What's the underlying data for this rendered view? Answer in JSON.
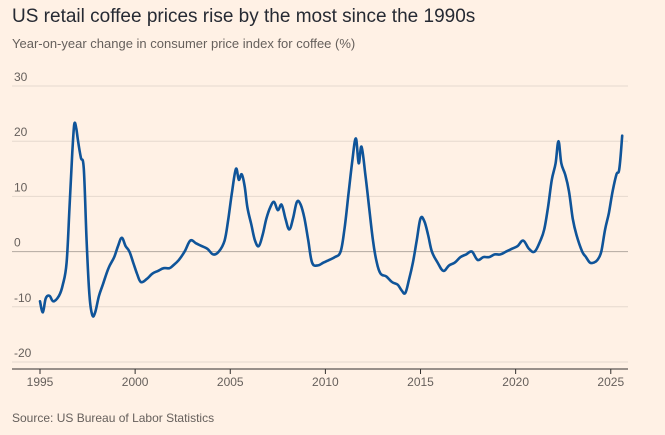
{
  "title": "US retail coffee prices rise by the most since the 1990s",
  "subtitle": "Year-on-year change in consumer price index for coffee (%)",
  "source": "Source: US Bureau of Labor Statistics",
  "colors": {
    "background": "#fff1e5",
    "line": "#0f5499",
    "grid": "#e6d9ce",
    "zero_line": "#b3a9a0"
  },
  "chart_data": {
    "type": "line",
    "title": "US retail coffee prices rise by the most since the 1990s",
    "subtitle": "Year-on-year change in consumer price index for coffee (%)",
    "xlabel": "",
    "ylabel": "",
    "xlim": [
      1995,
      2025.8
    ],
    "ylim": [
      -20,
      30
    ],
    "x_ticks": [
      1995,
      2000,
      2005,
      2010,
      2015,
      2020,
      2025
    ],
    "y_ticks": [
      -20,
      -10,
      0,
      10,
      20,
      30
    ],
    "grid": "horizontal",
    "legend": "none",
    "series": [
      {
        "values": [
          [
            1995.0,
            -9
          ],
          [
            1995.15,
            -11
          ],
          [
            1995.3,
            -8.5
          ],
          [
            1995.5,
            -8
          ],
          [
            1995.7,
            -9
          ],
          [
            1996.0,
            -8
          ],
          [
            1996.2,
            -6
          ],
          [
            1996.4,
            -2
          ],
          [
            1996.55,
            8
          ],
          [
            1996.7,
            18
          ],
          [
            1996.8,
            23
          ],
          [
            1996.9,
            22.5
          ],
          [
            1997.0,
            20
          ],
          [
            1997.15,
            17
          ],
          [
            1997.3,
            15
          ],
          [
            1997.45,
            2
          ],
          [
            1997.6,
            -8
          ],
          [
            1997.75,
            -11.5
          ],
          [
            1997.9,
            -11
          ],
          [
            1998.1,
            -8
          ],
          [
            1998.3,
            -6
          ],
          [
            1998.6,
            -3
          ],
          [
            1998.9,
            -1
          ],
          [
            1999.1,
            1
          ],
          [
            1999.3,
            2.5
          ],
          [
            1999.5,
            1
          ],
          [
            1999.7,
            0
          ],
          [
            1999.9,
            -2
          ],
          [
            2000.1,
            -4
          ],
          [
            2000.3,
            -5.5
          ],
          [
            2000.6,
            -5
          ],
          [
            2000.9,
            -4
          ],
          [
            2001.2,
            -3.5
          ],
          [
            2001.5,
            -3
          ],
          [
            2001.8,
            -3
          ],
          [
            2002.0,
            -2.5
          ],
          [
            2002.3,
            -1.5
          ],
          [
            2002.6,
            0
          ],
          [
            2002.9,
            2
          ],
          [
            2003.2,
            1.5
          ],
          [
            2003.5,
            1
          ],
          [
            2003.8,
            0.5
          ],
          [
            2004.1,
            -0.5
          ],
          [
            2004.4,
            0
          ],
          [
            2004.7,
            2
          ],
          [
            2004.9,
            6
          ],
          [
            2005.1,
            11
          ],
          [
            2005.3,
            15
          ],
          [
            2005.45,
            13
          ],
          [
            2005.6,
            14
          ],
          [
            2005.75,
            12
          ],
          [
            2005.9,
            8
          ],
          [
            2006.1,
            5
          ],
          [
            2006.3,
            2
          ],
          [
            2006.5,
            1
          ],
          [
            2006.7,
            3
          ],
          [
            2006.9,
            6
          ],
          [
            2007.1,
            8
          ],
          [
            2007.3,
            9
          ],
          [
            2007.5,
            7.5
          ],
          [
            2007.7,
            8.5
          ],
          [
            2007.9,
            6
          ],
          [
            2008.1,
            4
          ],
          [
            2008.3,
            6
          ],
          [
            2008.5,
            9
          ],
          [
            2008.7,
            8.5
          ],
          [
            2008.9,
            6
          ],
          [
            2009.1,
            2
          ],
          [
            2009.3,
            -2
          ],
          [
            2009.6,
            -2.5
          ],
          [
            2009.9,
            -2
          ],
          [
            2010.2,
            -1.5
          ],
          [
            2010.5,
            -1
          ],
          [
            2010.8,
            0
          ],
          [
            2011.0,
            4
          ],
          [
            2011.2,
            10
          ],
          [
            2011.4,
            16
          ],
          [
            2011.6,
            20.5
          ],
          [
            2011.75,
            16
          ],
          [
            2011.9,
            19
          ],
          [
            2012.1,
            14
          ],
          [
            2012.3,
            8
          ],
          [
            2012.5,
            2
          ],
          [
            2012.7,
            -2
          ],
          [
            2012.9,
            -4
          ],
          [
            2013.2,
            -4.5
          ],
          [
            2013.5,
            -5.5
          ],
          [
            2013.8,
            -6
          ],
          [
            2014.0,
            -7
          ],
          [
            2014.2,
            -7.5
          ],
          [
            2014.4,
            -5
          ],
          [
            2014.6,
            -2
          ],
          [
            2014.8,
            2
          ],
          [
            2015.0,
            6
          ],
          [
            2015.2,
            5.5
          ],
          [
            2015.4,
            3
          ],
          [
            2015.6,
            0
          ],
          [
            2015.9,
            -2
          ],
          [
            2016.2,
            -3.5
          ],
          [
            2016.5,
            -2.5
          ],
          [
            2016.8,
            -2
          ],
          [
            2017.1,
            -1
          ],
          [
            2017.4,
            -0.5
          ],
          [
            2017.7,
            0
          ],
          [
            2018.0,
            -1.5
          ],
          [
            2018.3,
            -1
          ],
          [
            2018.6,
            -1
          ],
          [
            2018.9,
            -0.5
          ],
          [
            2019.2,
            -0.5
          ],
          [
            2019.5,
            0
          ],
          [
            2019.8,
            0.5
          ],
          [
            2020.1,
            1
          ],
          [
            2020.4,
            2
          ],
          [
            2020.7,
            0.5
          ],
          [
            2021.0,
            0
          ],
          [
            2021.3,
            2
          ],
          [
            2021.5,
            4
          ],
          [
            2021.7,
            8
          ],
          [
            2021.9,
            13
          ],
          [
            2022.1,
            16
          ],
          [
            2022.25,
            20
          ],
          [
            2022.4,
            16
          ],
          [
            2022.6,
            14
          ],
          [
            2022.8,
            11
          ],
          [
            2023.0,
            6
          ],
          [
            2023.2,
            3
          ],
          [
            2023.5,
            0
          ],
          [
            2023.7,
            -1
          ],
          [
            2023.9,
            -2
          ],
          [
            2024.1,
            -2
          ],
          [
            2024.3,
            -1.5
          ],
          [
            2024.5,
            0
          ],
          [
            2024.7,
            4
          ],
          [
            2024.9,
            7
          ],
          [
            2025.1,
            11
          ],
          [
            2025.3,
            14
          ],
          [
            2025.45,
            15
          ],
          [
            2025.6,
            21
          ]
        ]
      }
    ]
  }
}
